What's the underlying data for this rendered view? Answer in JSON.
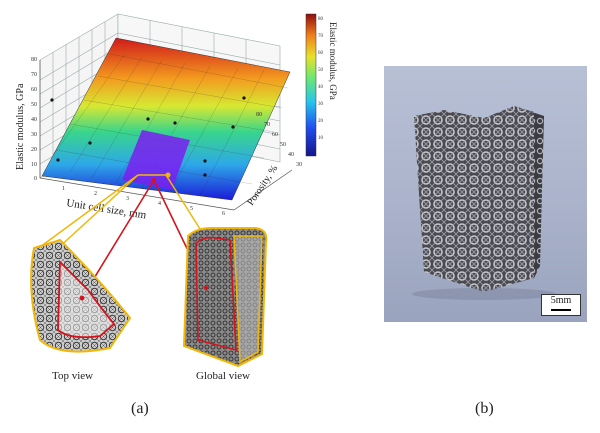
{
  "figure_a": {
    "caption": "(a)",
    "z_axis_label": "Elastic modulus, GPa",
    "x_axis_label": "Unit cell size, mm",
    "y_axis_label": "Porosity, %",
    "colorbar_label": "Elastic modulus, GPa",
    "z_ticks": [
      "80",
      "70",
      "60",
      "50",
      "40",
      "30",
      "20",
      "10",
      "0"
    ],
    "x_ticks": [
      "1",
      "2",
      "3",
      "4",
      "5",
      "6"
    ],
    "y_ticks": [
      "30",
      "40",
      "50",
      "60",
      "70",
      "80"
    ],
    "colorbar_ticks": [
      "80",
      "70",
      "60",
      "50",
      "40",
      "30",
      "20",
      "10"
    ],
    "top_view_label": "Top view",
    "global_view_label": "Global view"
  },
  "figure_b": {
    "caption": "(b)",
    "scale_label": "5mm"
  },
  "colors": {
    "highlight_outline": "#f2b705",
    "marker_red": "#d4141c",
    "region_purple": "#7a1ff0"
  }
}
